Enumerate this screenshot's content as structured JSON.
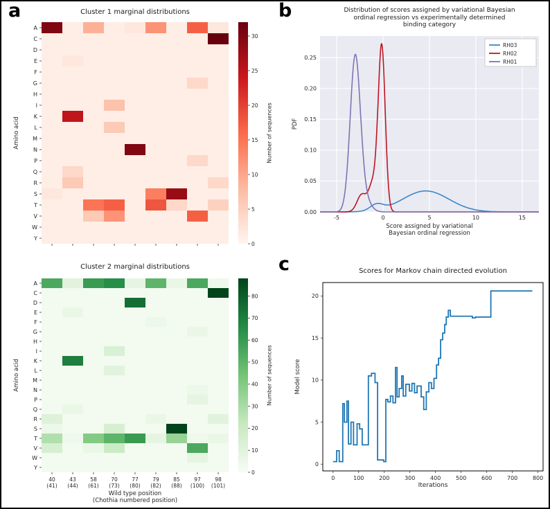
{
  "figure": {
    "background": "#ffffff",
    "border_color": "#000000"
  },
  "panels": {
    "a": "a",
    "b": "b",
    "c": "c"
  },
  "chart_data": [
    {
      "id": "cluster1",
      "type": "heatmap",
      "title": "Cluster 1 marginal distributions",
      "ylabel": "Amino acid",
      "colorbar_label": "Number of sequences",
      "colormap": "Reds",
      "colormap_stops": [
        "#fff5f0",
        "#fcbba1",
        "#fb6a4a",
        "#cb181d",
        "#67000d"
      ],
      "vmin": 0,
      "vmax": 32,
      "colorbar_ticks": [
        0,
        5,
        10,
        15,
        20,
        25,
        30
      ],
      "rows": [
        "A",
        "C",
        "D",
        "E",
        "F",
        "G",
        "H",
        "I",
        "K",
        "L",
        "M",
        "N",
        "P",
        "Q",
        "R",
        "S",
        "T",
        "V",
        "W",
        "Y"
      ],
      "cols": [
        "40",
        "43",
        "58",
        "70",
        "77",
        "79",
        "85",
        "97",
        "98"
      ],
      "values": [
        [
          30,
          1,
          9,
          1,
          2,
          12,
          1,
          17,
          2
        ],
        [
          1,
          1,
          1,
          1,
          1,
          1,
          1,
          1,
          32
        ],
        [
          1,
          1,
          1,
          1,
          1,
          1,
          1,
          1,
          1
        ],
        [
          1,
          2,
          1,
          1,
          1,
          1,
          1,
          1,
          1
        ],
        [
          1,
          1,
          1,
          1,
          1,
          1,
          1,
          1,
          1
        ],
        [
          1,
          1,
          1,
          1,
          1,
          1,
          1,
          4,
          1
        ],
        [
          1,
          1,
          1,
          1,
          1,
          1,
          1,
          1,
          1
        ],
        [
          1,
          1,
          1,
          7,
          1,
          1,
          1,
          1,
          1
        ],
        [
          1,
          25,
          1,
          1,
          1,
          1,
          1,
          1,
          1
        ],
        [
          1,
          1,
          1,
          6,
          1,
          1,
          1,
          1,
          1
        ],
        [
          1,
          1,
          1,
          1,
          1,
          1,
          1,
          1,
          1
        ],
        [
          1,
          1,
          1,
          1,
          30,
          1,
          1,
          1,
          1
        ],
        [
          1,
          1,
          1,
          1,
          1,
          1,
          1,
          4,
          1
        ],
        [
          1,
          4,
          1,
          1,
          1,
          1,
          1,
          1,
          1
        ],
        [
          1,
          6,
          1,
          1,
          1,
          1,
          1,
          1,
          4
        ],
        [
          2,
          1,
          1,
          1,
          1,
          14,
          28,
          1,
          1
        ],
        [
          1,
          1,
          15,
          17,
          1,
          18,
          4,
          1,
          5
        ],
        [
          1,
          1,
          6,
          12,
          1,
          1,
          1,
          17,
          1
        ],
        [
          1,
          1,
          1,
          1,
          1,
          1,
          1,
          1,
          1
        ],
        [
          1,
          1,
          1,
          1,
          1,
          1,
          1,
          1,
          1
        ]
      ]
    },
    {
      "id": "cluster2",
      "type": "heatmap",
      "title": "Cluster 2 marginal distributions",
      "ylabel": "Amino acid",
      "xlabel": "Wild type position\n(Chothia numbered position)",
      "colorbar_label": "Number of sequences",
      "colormap": "Greens",
      "colormap_stops": [
        "#f7fcf5",
        "#c7e9c0",
        "#74c476",
        "#238b45",
        "#00441b"
      ],
      "vmin": 0,
      "vmax": 88,
      "colorbar_ticks": [
        0,
        10,
        20,
        30,
        40,
        50,
        60,
        70,
        80
      ],
      "rows": [
        "A",
        "C",
        "D",
        "E",
        "F",
        "G",
        "H",
        "I",
        "K",
        "L",
        "M",
        "N",
        "P",
        "Q",
        "R",
        "S",
        "T",
        "V",
        "W",
        "Y"
      ],
      "cols": [
        "40",
        "43",
        "58",
        "70",
        "77",
        "79",
        "85",
        "97",
        "98"
      ],
      "col_sublabels": [
        "(41)",
        "(44)",
        "(61)",
        "(73)",
        "(80)",
        "(82)",
        "(88)",
        "(100)",
        "(101)"
      ],
      "values": [
        [
          55,
          10,
          60,
          65,
          8,
          50,
          6,
          55,
          4
        ],
        [
          2,
          2,
          2,
          2,
          2,
          2,
          2,
          2,
          88
        ],
        [
          2,
          2,
          2,
          2,
          75,
          2,
          2,
          2,
          2
        ],
        [
          2,
          6,
          2,
          2,
          2,
          2,
          2,
          2,
          2
        ],
        [
          2,
          2,
          2,
          2,
          2,
          5,
          2,
          2,
          2
        ],
        [
          2,
          2,
          2,
          2,
          2,
          2,
          2,
          6,
          2
        ],
        [
          2,
          2,
          2,
          2,
          2,
          2,
          2,
          2,
          2
        ],
        [
          2,
          2,
          2,
          14,
          2,
          2,
          2,
          2,
          2
        ],
        [
          2,
          70,
          2,
          2,
          2,
          2,
          2,
          2,
          2
        ],
        [
          2,
          2,
          2,
          10,
          2,
          2,
          2,
          2,
          2
        ],
        [
          2,
          2,
          2,
          2,
          2,
          2,
          2,
          2,
          2
        ],
        [
          2,
          2,
          2,
          2,
          2,
          2,
          2,
          5,
          2
        ],
        [
          2,
          2,
          2,
          2,
          2,
          2,
          2,
          8,
          2
        ],
        [
          2,
          6,
          2,
          2,
          2,
          2,
          2,
          2,
          2
        ],
        [
          12,
          2,
          2,
          2,
          2,
          6,
          2,
          2,
          10
        ],
        [
          5,
          2,
          2,
          15,
          2,
          2,
          88,
          2,
          2
        ],
        [
          28,
          4,
          40,
          50,
          60,
          8,
          35,
          4,
          6
        ],
        [
          15,
          2,
          6,
          20,
          2,
          2,
          2,
          55,
          2
        ],
        [
          2,
          2,
          2,
          2,
          2,
          2,
          2,
          8,
          2
        ],
        [
          2,
          2,
          2,
          2,
          2,
          2,
          2,
          2,
          2
        ]
      ]
    },
    {
      "id": "score-distribution",
      "type": "line",
      "title": "Distribution of scores assigned by variational Bayesian\nordinal regression vs experimentally determined\nbinding category",
      "xlabel": "Score assigned by variational\nBayesian ordinal regression",
      "ylabel": "PDF",
      "plot_bg": "#eaeaf2",
      "grid_color": "#ffffff",
      "x_range": [
        -6.8,
        16.8
      ],
      "y_range": [
        0,
        0.285
      ],
      "x_ticks": [
        -5,
        0,
        5,
        10,
        15
      ],
      "y_ticks": [
        0,
        0.05,
        0.1,
        0.15,
        0.2,
        0.25
      ],
      "legend_position": "upper right",
      "series": [
        {
          "name": "RH03",
          "color": "#3a87c8",
          "peaks": [
            {
              "mu": 4.6,
              "sigma": 2.5,
              "amp": 0.034
            },
            {
              "mu": -0.7,
              "sigma": 0.7,
              "amp": 0.01
            }
          ]
        },
        {
          "name": "RH02",
          "color": "#bb1520",
          "peaks": [
            {
              "mu": -0.15,
              "sigma": 0.38,
              "amp": 0.268
            },
            {
              "mu": -1.1,
              "sigma": 0.45,
              "amp": 0.045
            },
            {
              "mu": -2.3,
              "sigma": 0.5,
              "amp": 0.028
            }
          ]
        },
        {
          "name": "RH01",
          "color": "#8172b2",
          "peaks": [
            {
              "mu": -3.0,
              "sigma": 0.55,
              "amp": 0.252
            },
            {
              "mu": -1.9,
              "sigma": 0.6,
              "amp": 0.018
            }
          ]
        }
      ]
    },
    {
      "id": "markov-scores",
      "type": "line",
      "title": "Scores for Markov chain directed evolution",
      "xlabel": "Iterations",
      "ylabel": "Model score",
      "line_color": "#1f77b4",
      "x_range": [
        -40,
        820
      ],
      "y_range": [
        -0.8,
        21.6
      ],
      "x_ticks": [
        0,
        100,
        200,
        300,
        400,
        500,
        600,
        700,
        800
      ],
      "y_ticks": [
        0,
        5,
        10,
        15,
        20
      ],
      "points": [
        [
          0,
          0.3
        ],
        [
          14,
          0.3
        ],
        [
          14,
          1.6
        ],
        [
          24,
          1.6
        ],
        [
          24,
          0.3
        ],
        [
          38,
          0.3
        ],
        [
          38,
          7.2
        ],
        [
          44,
          7.2
        ],
        [
          44,
          5.0
        ],
        [
          54,
          5.0
        ],
        [
          54,
          7.5
        ],
        [
          60,
          7.5
        ],
        [
          60,
          2.4
        ],
        [
          70,
          2.4
        ],
        [
          70,
          5.0
        ],
        [
          80,
          5.0
        ],
        [
          80,
          2.3
        ],
        [
          94,
          2.3
        ],
        [
          94,
          4.8
        ],
        [
          104,
          4.8
        ],
        [
          104,
          4.2
        ],
        [
          114,
          4.2
        ],
        [
          114,
          2.3
        ],
        [
          138,
          2.3
        ],
        [
          138,
          10.5
        ],
        [
          150,
          10.5
        ],
        [
          150,
          10.8
        ],
        [
          164,
          10.8
        ],
        [
          164,
          9.7
        ],
        [
          174,
          9.7
        ],
        [
          174,
          0.5
        ],
        [
          198,
          0.5
        ],
        [
          198,
          0.3
        ],
        [
          206,
          0.3
        ],
        [
          206,
          7.7
        ],
        [
          214,
          7.7
        ],
        [
          214,
          7.4
        ],
        [
          224,
          7.4
        ],
        [
          224,
          8.1
        ],
        [
          234,
          8.1
        ],
        [
          234,
          7.3
        ],
        [
          244,
          7.3
        ],
        [
          244,
          11.5
        ],
        [
          250,
          11.5
        ],
        [
          250,
          8.0
        ],
        [
          258,
          8.0
        ],
        [
          258,
          9.0
        ],
        [
          268,
          9.0
        ],
        [
          268,
          10.5
        ],
        [
          274,
          10.5
        ],
        [
          274,
          8.1
        ],
        [
          284,
          8.1
        ],
        [
          284,
          9.5
        ],
        [
          298,
          9.5
        ],
        [
          298,
          8.7
        ],
        [
          308,
          8.7
        ],
        [
          308,
          9.6
        ],
        [
          318,
          9.6
        ],
        [
          318,
          8.5
        ],
        [
          328,
          8.5
        ],
        [
          328,
          9.3
        ],
        [
          344,
          9.3
        ],
        [
          344,
          8.0
        ],
        [
          354,
          8.0
        ],
        [
          354,
          6.5
        ],
        [
          364,
          6.5
        ],
        [
          364,
          8.6
        ],
        [
          374,
          8.6
        ],
        [
          374,
          9.7
        ],
        [
          384,
          9.7
        ],
        [
          384,
          9.0
        ],
        [
          394,
          9.0
        ],
        [
          394,
          10.2
        ],
        [
          404,
          10.2
        ],
        [
          404,
          11.8
        ],
        [
          412,
          11.8
        ],
        [
          412,
          12.6
        ],
        [
          420,
          12.6
        ],
        [
          420,
          14.8
        ],
        [
          428,
          14.8
        ],
        [
          428,
          15.6
        ],
        [
          436,
          15.6
        ],
        [
          436,
          16.6
        ],
        [
          442,
          16.6
        ],
        [
          442,
          17.5
        ],
        [
          450,
          17.5
        ],
        [
          450,
          18.3
        ],
        [
          458,
          18.3
        ],
        [
          458,
          17.6
        ],
        [
          544,
          17.6
        ],
        [
          544,
          17.4
        ],
        [
          556,
          17.4
        ],
        [
          556,
          17.5
        ],
        [
          616,
          17.5
        ],
        [
          616,
          20.6
        ],
        [
          778,
          20.6
        ]
      ]
    }
  ]
}
